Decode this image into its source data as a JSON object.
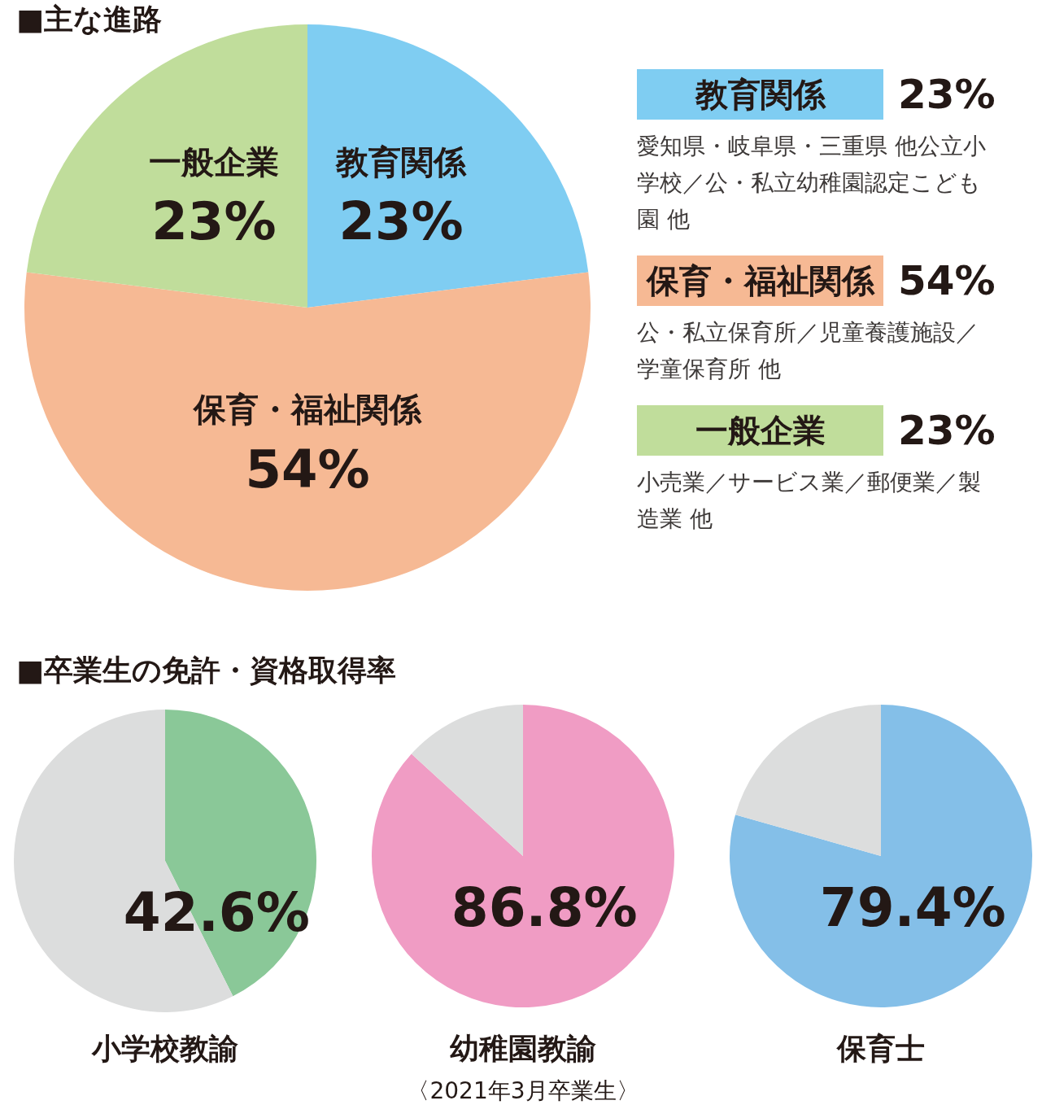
{
  "chart_data": [
    {
      "type": "pie",
      "title": "■主な進路",
      "categories": [
        "教育関係",
        "保育・福祉関係",
        "一般企業"
      ],
      "values": [
        23,
        54,
        23
      ],
      "colors": [
        "#7fcdf2",
        "#f6b994",
        "#c0dd9b"
      ],
      "value_labels": [
        "23%",
        "54%",
        "23%"
      ],
      "annotations": [
        "愛知県・岐阜県・三重県 他公立小学校／公・私立幼稚園認定こども園 他",
        "公・私立保育所／児童養護施設／学童保育所 他",
        "小売業／サービス業／郵便業／製造業 他"
      ]
    },
    {
      "type": "pie",
      "title": "小学校教諭",
      "categories": [
        null,
        null
      ],
      "values": [
        42.6,
        57.4
      ],
      "colors": [
        "#8ac898",
        "#dcdddd"
      ],
      "value_labels": [
        "42.6%",
        null
      ],
      "annotations": [
        "■卒業生の免許・資格取得率"
      ]
    },
    {
      "type": "pie",
      "title": "幼稚園教諭",
      "categories": [
        null,
        null
      ],
      "values": [
        86.8,
        13.2
      ],
      "colors": [
        "#f09cc4",
        "#dcdddd"
      ],
      "value_labels": [
        "86.8%",
        null
      ],
      "annotations": [
        "〈2021年3月卒業生〉"
      ]
    },
    {
      "type": "pie",
      "title": "保育士",
      "categories": [
        null,
        null
      ],
      "values": [
        79.4,
        20.6
      ],
      "colors": [
        "#84bfe8",
        "#dcdddd"
      ],
      "value_labels": [
        "79.4%",
        null
      ]
    }
  ]
}
